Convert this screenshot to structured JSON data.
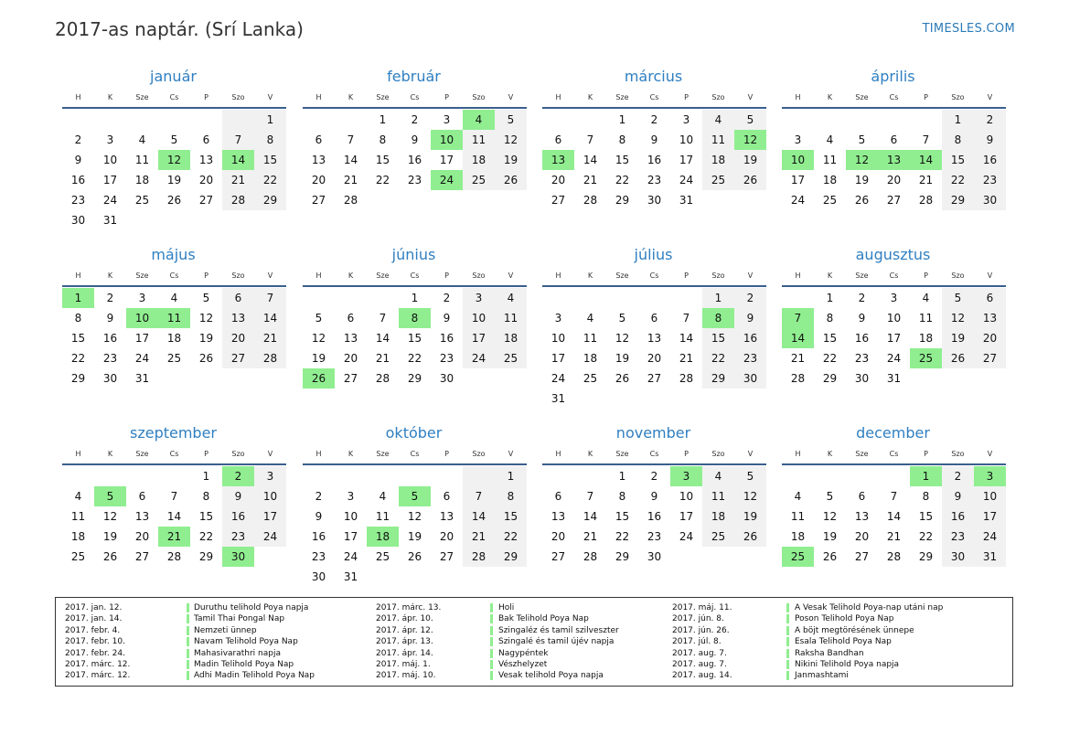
{
  "title": "2017-as naptár. (Srí Lanka)",
  "brand": "TIMESLES.COM",
  "colors": {
    "accent": "#2f7fc1",
    "holiday": "#90ee90",
    "weekend": "#f1f1f1"
  },
  "weekday_labels": [
    "H",
    "K",
    "Sze",
    "Cs",
    "P",
    "Szo",
    "V"
  ],
  "months": [
    {
      "name": "január",
      "offset": 6,
      "days": 31,
      "holidays": [
        12,
        14
      ]
    },
    {
      "name": "február",
      "offset": 2,
      "days": 28,
      "holidays": [
        4,
        10,
        24
      ]
    },
    {
      "name": "március",
      "offset": 2,
      "days": 31,
      "holidays": [
        12,
        13
      ]
    },
    {
      "name": "április",
      "offset": 5,
      "days": 30,
      "holidays": [
        10,
        12,
        13,
        14
      ]
    },
    {
      "name": "május",
      "offset": 0,
      "days": 31,
      "holidays": [
        1,
        10,
        11
      ]
    },
    {
      "name": "június",
      "offset": 3,
      "days": 30,
      "holidays": [
        8,
        26
      ]
    },
    {
      "name": "július",
      "offset": 5,
      "days": 31,
      "holidays": [
        8
      ]
    },
    {
      "name": "augusztus",
      "offset": 1,
      "days": 31,
      "holidays": [
        7,
        14,
        25
      ]
    },
    {
      "name": "szeptember",
      "offset": 4,
      "days": 30,
      "holidays": [
        2,
        5,
        21,
        30
      ]
    },
    {
      "name": "október",
      "offset": 6,
      "days": 31,
      "holidays": [
        5,
        18
      ]
    },
    {
      "name": "november",
      "offset": 2,
      "days": 30,
      "holidays": [
        3
      ]
    },
    {
      "name": "december",
      "offset": 4,
      "days": 31,
      "holidays": [
        1,
        3,
        25
      ]
    }
  ],
  "holidays_list": [
    [
      {
        "date": "2017. jan. 12.",
        "name": "Duruthu telihold Poya napja"
      },
      {
        "date": "2017. jan. 14.",
        "name": "Tamil Thai Pongal Nap"
      },
      {
        "date": "2017. febr. 4.",
        "name": "Nemzeti ünnep"
      },
      {
        "date": "2017. febr. 10.",
        "name": "Navam Telihold Poya Nap"
      },
      {
        "date": "2017. febr. 24.",
        "name": "Mahasivarathri napja"
      },
      {
        "date": "2017. márc. 12.",
        "name": "Madin Telihold Poya Nap"
      },
      {
        "date": "2017. márc. 12.",
        "name": "Adhi Madin Telihold Poya Nap"
      }
    ],
    [
      {
        "date": "2017. márc. 13.",
        "name": "Holi"
      },
      {
        "date": "2017. ápr. 10.",
        "name": "Bak Telihold Poya Nap"
      },
      {
        "date": "2017. ápr. 12.",
        "name": "Szingaléz és tamil szilveszter"
      },
      {
        "date": "2017. ápr. 13.",
        "name": "Szingalé és tamil újév napja"
      },
      {
        "date": "2017. ápr. 14.",
        "name": "Nagypéntek"
      },
      {
        "date": "2017. máj. 1.",
        "name": "Vészhelyzet"
      },
      {
        "date": "2017. máj. 10.",
        "name": "Vesak telihold Poya napja"
      }
    ],
    [
      {
        "date": "2017. máj. 11.",
        "name": "A Vesak Telihold Poya-nap utáni nap"
      },
      {
        "date": "2017. jún. 8.",
        "name": "Poson Telihold Poya Nap"
      },
      {
        "date": "2017. jún. 26.",
        "name": "A böjt megtörésének ünnepe"
      },
      {
        "date": "2017. júl. 8.",
        "name": "Esala Telihold Poya Nap"
      },
      {
        "date": "2017. aug. 7.",
        "name": "Raksha Bandhan"
      },
      {
        "date": "2017. aug. 7.",
        "name": "Nikini Telihold Poya napja"
      },
      {
        "date": "2017. aug. 14.",
        "name": "Janmashtami"
      }
    ]
  ]
}
